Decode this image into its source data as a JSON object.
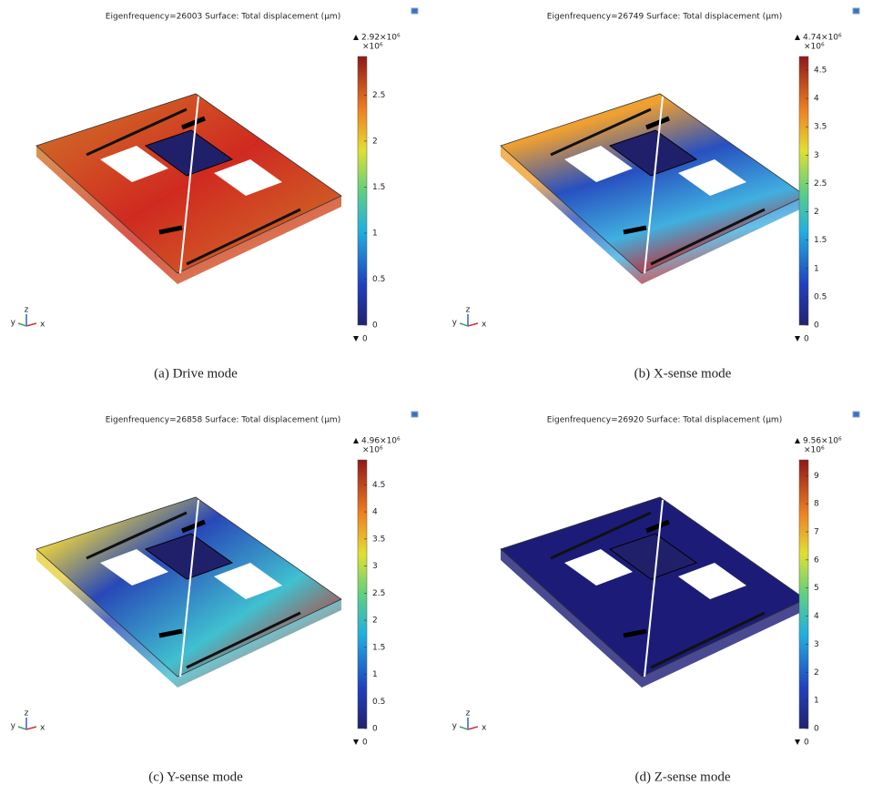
{
  "panels": [
    {
      "title": "Eigenfrequency=26003 Surface: Total displacement (µm)",
      "colorbar": {
        "max_label": "2.92×10⁶",
        "multiplier": "×10⁶",
        "min_label": "0",
        "range": [
          0,
          2.92
        ],
        "ticks": [
          0,
          0.5,
          1,
          1.5,
          2,
          2.5
        ]
      },
      "axes": {
        "x": "x",
        "y": "y",
        "z": "z"
      },
      "caption": "(a) Drive mode"
    },
    {
      "title": "Eigenfrequency=26749 Surface: Total displacement (µm)",
      "colorbar": {
        "max_label": "4.74×10⁶",
        "multiplier": "×10⁶",
        "min_label": "0",
        "range": [
          0,
          4.74
        ],
        "ticks": [
          0,
          0.5,
          1,
          1.5,
          2,
          2.5,
          3,
          3.5,
          4,
          4.5
        ]
      },
      "axes": {
        "x": "x",
        "y": "y",
        "z": "z"
      },
      "caption": "(b) X-sense mode"
    },
    {
      "title": "Eigenfrequency=26858 Surface: Total displacement (µm)",
      "colorbar": {
        "max_label": "4.96×10⁶",
        "multiplier": "×10⁶",
        "min_label": "0",
        "range": [
          0,
          4.96
        ],
        "ticks": [
          0,
          0.5,
          1,
          1.5,
          2,
          2.5,
          3,
          3.5,
          4,
          4.5
        ]
      },
      "axes": {
        "x": "x",
        "y": "y",
        "z": "z"
      },
      "caption": "(c) Y-sense mode"
    },
    {
      "title": "Eigenfrequency=26920 Surface: Total displacement (µm)",
      "colorbar": {
        "max_label": "9.56×10⁶",
        "multiplier": "×10⁶",
        "min_label": "0",
        "range": [
          0,
          9.56
        ],
        "ticks": [
          0,
          1,
          2,
          3,
          4,
          5,
          6,
          7,
          8,
          9
        ]
      },
      "axes": {
        "x": "x",
        "y": "y",
        "z": "z"
      },
      "caption": "(d) Z-sense mode"
    }
  ]
}
